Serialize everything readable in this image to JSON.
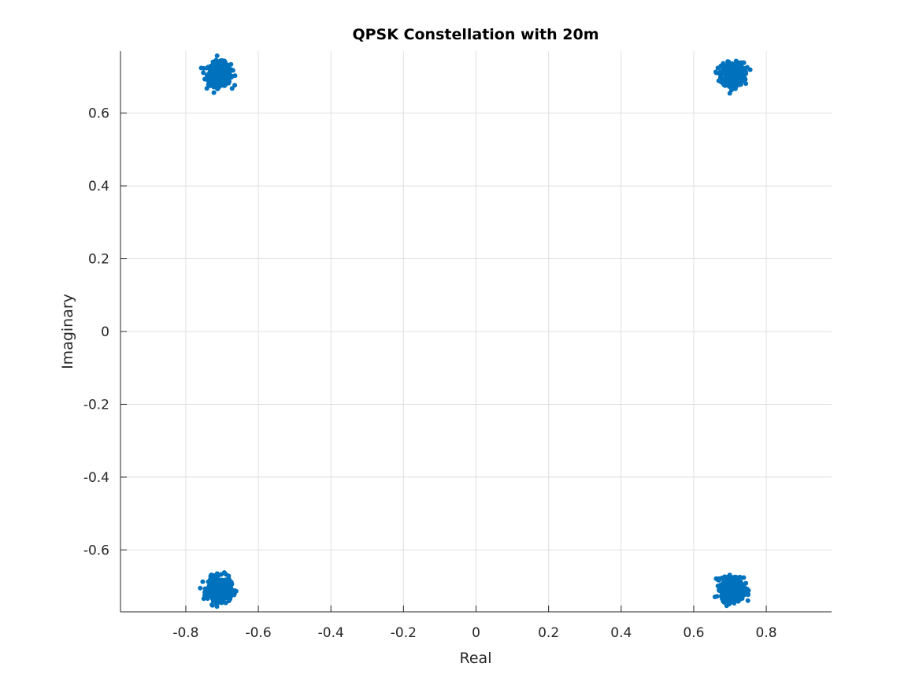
{
  "chart_data": {
    "type": "scatter",
    "title": "QPSK Constellation with 20m",
    "xlabel": "Real",
    "ylabel": "Imaginary",
    "xlim": [
      -0.98,
      0.98
    ],
    "ylim": [
      -0.77,
      0.77
    ],
    "xticks": [
      -0.8,
      -0.6,
      -0.4,
      -0.2,
      0,
      0.2,
      0.4,
      0.6,
      0.8
    ],
    "yticks": [
      -0.6,
      -0.4,
      -0.2,
      0,
      0.2,
      0.4,
      0.6
    ],
    "xtick_labels": [
      "-0.8",
      "-0.6",
      "-0.4",
      "-0.2",
      "0",
      "0.2",
      "0.4",
      "0.6",
      "0.8"
    ],
    "ytick_labels": [
      "-0.6",
      "-0.4",
      "-0.2",
      "0",
      "0.2",
      "0.4",
      "0.6"
    ],
    "grid": true,
    "marker_color": "#0072bd",
    "series": [
      {
        "clusters": [
          {
            "center": [
              -0.707,
              0.707
            ],
            "spread": 0.028
          },
          {
            "center": [
              0.707,
              0.707
            ],
            "spread": 0.028
          },
          {
            "center": [
              -0.707,
              -0.707
            ],
            "spread": 0.028
          },
          {
            "center": [
              0.707,
              -0.707
            ],
            "spread": 0.028
          }
        ],
        "points_per_cluster": 500
      }
    ]
  }
}
